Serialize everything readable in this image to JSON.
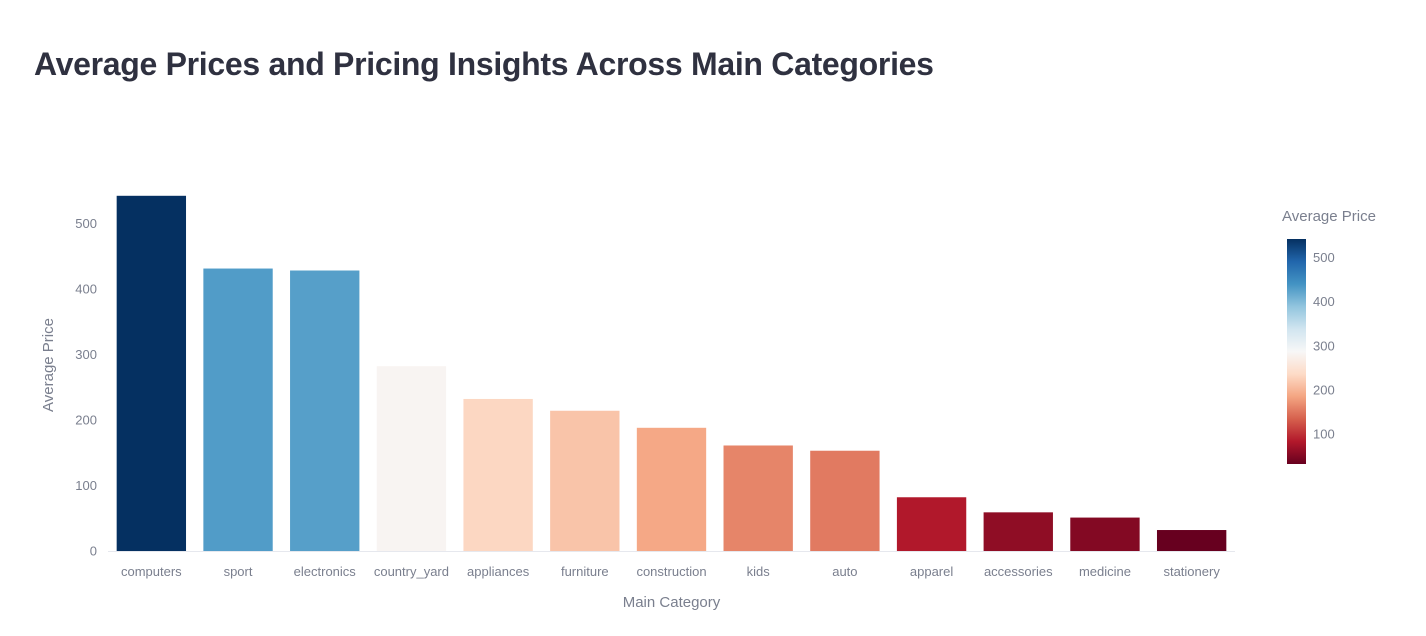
{
  "chart_data": {
    "type": "bar",
    "title": "Average Prices and Pricing Insights Across Main Categories",
    "xlabel": "Main Category",
    "ylabel": "Average Price",
    "categories": [
      "computers",
      "sport",
      "electronics",
      "country_yard",
      "appliances",
      "furniture",
      "construction",
      "kids",
      "auto",
      "apparel",
      "accessories",
      "medicine",
      "stationery"
    ],
    "values": [
      542,
      431,
      428,
      282,
      232,
      214,
      188,
      161,
      153,
      82,
      59,
      51,
      32
    ],
    "ylim": [
      0,
      560
    ],
    "yticks": [
      0,
      100,
      200,
      300,
      400,
      500
    ],
    "grid": false,
    "legend": "none",
    "colorbar": {
      "title": "Average Price",
      "ticks": [
        100,
        200,
        300,
        400,
        500
      ],
      "range": [
        32,
        542
      ],
      "colorscale": [
        "#67001f",
        "#b2182b",
        "#d6604d",
        "#f4a582",
        "#fddbc7",
        "#f7f7f7",
        "#d1e5f0",
        "#92c5de",
        "#4393c3",
        "#2166ac",
        "#053061"
      ],
      "placement": "right"
    }
  }
}
